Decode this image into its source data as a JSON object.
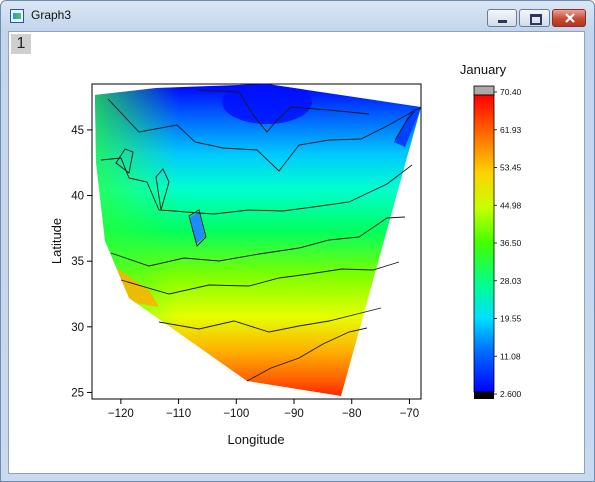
{
  "window": {
    "title": "Graph3",
    "layer_tab": "1"
  },
  "chart_data": {
    "type": "heatmap",
    "subtype": "filled-contour",
    "xlabel": "Longitude",
    "ylabel": "Latitude",
    "xlim": [
      -125,
      -68
    ],
    "ylim": [
      24.5,
      48.5
    ],
    "xticks": [
      -120,
      -110,
      -100,
      -90,
      -80,
      -70
    ],
    "yticks": [
      25,
      30,
      35,
      40,
      45
    ],
    "colorbar": {
      "title": "January",
      "ticks": [
        "2.600",
        "11.08",
        "19.55",
        "28.03",
        "36.50",
        "44.98",
        "53.45",
        "61.93",
        "70.40"
      ],
      "range": [
        2.6,
        70.4
      ],
      "colors": [
        "#0000ff",
        "#00a0ff",
        "#00ffe0",
        "#00ff40",
        "#a0ff00",
        "#ffd000",
        "#ff7000",
        "#ff0000"
      ],
      "under_color": "#000000",
      "over_color": "#aaaaaa"
    },
    "contour_lines": true,
    "legend_position": "right",
    "grid": false
  }
}
